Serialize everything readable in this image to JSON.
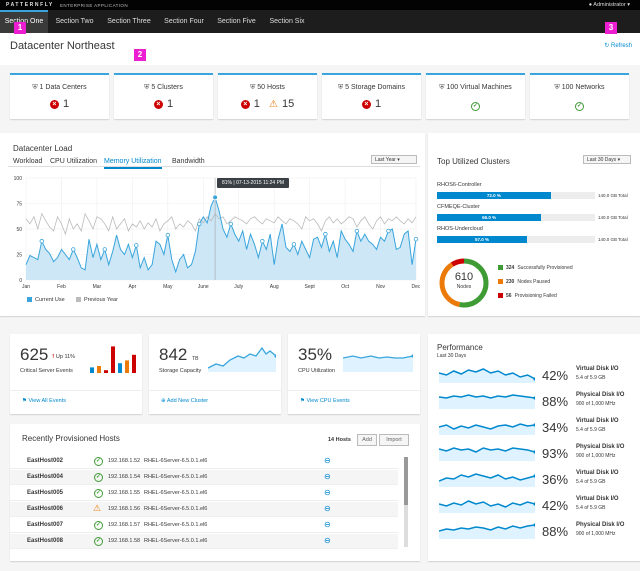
{
  "app": {
    "brand": "PATTERNFLY",
    "brand_sub": "ENTERPRISE APPLICATION",
    "user": "Administrator"
  },
  "nav": [
    "Section One",
    "Section Two",
    "Section Three",
    "Section Four",
    "Section Five",
    "Section Six"
  ],
  "badges": [
    "1",
    "2",
    "3"
  ],
  "page": {
    "title": "Datacenter Northeast",
    "refresh": "Refresh"
  },
  "aggregate": [
    {
      "label": "1 Data Centers",
      "status": [
        {
          "icon": "error-circle-icon",
          "count": "1"
        }
      ]
    },
    {
      "label": "5 Clusters",
      "status": [
        {
          "icon": "error-circle-icon",
          "count": "1"
        }
      ]
    },
    {
      "label": "50 Hosts",
      "status": [
        {
          "icon": "error-circle-icon",
          "count": "1"
        },
        {
          "icon": "warning-triangle-icon",
          "count": "15"
        }
      ]
    },
    {
      "label": "5 Storage Domains",
      "status": [
        {
          "icon": "error-circle-icon",
          "count": "1"
        }
      ]
    },
    {
      "label": "100 Virtual Machines",
      "status": [
        {
          "icon": "ok-circle-icon",
          "count": ""
        }
      ]
    },
    {
      "label": "100 Networks",
      "status": [
        {
          "icon": "ok-circle-icon",
          "count": ""
        }
      ]
    }
  ],
  "load": {
    "title": "Datacenter Load",
    "tabs": [
      "Workload",
      "CPU Utilization",
      "Memory Utilization",
      "Bandwidth"
    ],
    "active_tab": 2,
    "select": "Last Year",
    "tooltip": "81% | 07-13-2015 11:24 PM",
    "legend": [
      "Current Use",
      "Previous Year"
    ]
  },
  "chart_data": {
    "type": "area",
    "xlabels": [
      "Jan",
      "Feb",
      "Mar",
      "Apr",
      "May",
      "June",
      "July",
      "Aug",
      "Sept",
      "Oct",
      "Nov",
      "Dec"
    ],
    "ylim": [
      0,
      100
    ],
    "yticks": [
      0,
      25,
      50,
      75,
      100
    ],
    "colors": {
      "current": "#39a5dc",
      "previous": "#bbbbbb",
      "fill": "#cde7f6"
    },
    "series": [
      {
        "name": "Current Use",
        "values": [
          15,
          24,
          22,
          20,
          38,
          30,
          26,
          18,
          22,
          30,
          25,
          20,
          30,
          22,
          12,
          10,
          40,
          22,
          35,
          20,
          30,
          15,
          28,
          44,
          30,
          25,
          35,
          22,
          34,
          12,
          22,
          10,
          15,
          38,
          35,
          25,
          44,
          20,
          8,
          20,
          25,
          12,
          15,
          28,
          55,
          62,
          56,
          73,
          81,
          68,
          50,
          42,
          55,
          45,
          38,
          48,
          30,
          45,
          35,
          22,
          38,
          30,
          45,
          15,
          40,
          55,
          32,
          28,
          35,
          25,
          38,
          30,
          22,
          40,
          42,
          32,
          45,
          28,
          38,
          22,
          48,
          40,
          35,
          28,
          48,
          38,
          45,
          38,
          35,
          30,
          42,
          38,
          48,
          50,
          30,
          32,
          45,
          48,
          15,
          40
        ]
      },
      {
        "name": "Previous Year",
        "values": [
          60,
          55,
          62,
          50,
          65,
          58,
          52,
          48,
          62,
          55,
          45,
          60,
          50,
          55,
          48,
          65,
          58,
          50,
          62,
          60,
          55,
          48,
          62,
          50,
          55,
          60,
          48,
          55,
          52,
          58,
          50,
          56,
          52,
          60,
          48,
          55,
          58,
          62,
          50,
          55,
          52,
          58,
          55,
          48,
          60,
          56,
          62,
          58,
          65,
          60,
          62,
          55,
          58,
          62,
          60,
          58,
          55,
          60,
          62,
          58,
          55,
          60,
          58,
          56,
          62,
          58,
          55,
          60,
          58,
          55,
          50,
          62,
          58,
          60,
          55,
          48,
          58,
          62,
          56,
          60,
          55,
          58,
          62,
          60,
          52,
          58,
          62,
          55,
          50,
          58,
          62,
          55,
          60,
          58,
          62,
          58,
          55,
          60,
          56,
          62
        ]
      }
    ]
  },
  "clusters": {
    "title": "Top Utilized Clusters",
    "select": "Last 30 Days",
    "items": [
      {
        "name": "RHOS6-Controller",
        "pct": 72.0,
        "label": "72.0 %",
        "total": "140.0 GB Total"
      },
      {
        "name": "CFMEQE-Cluster",
        "pct": 66.0,
        "label": "66.0 %",
        "total": "140.0 GB Total"
      },
      {
        "name": "RHOS-Undercloud",
        "pct": 57.0,
        "label": "57.0 %",
        "total": "140.0 GB Total"
      }
    ],
    "donut": {
      "value": "610",
      "label": "Nodes",
      "segments": [
        {
          "value": 324,
          "color": "#3f9c35"
        },
        {
          "value": 230,
          "color": "#ec7a08"
        },
        {
          "value": 56,
          "color": "#cc0000"
        }
      ]
    },
    "legend": [
      {
        "count": "324",
        "label": "Successfully Provisioned",
        "color": "#3f9c35"
      },
      {
        "count": "230",
        "label": "Nodes Paused",
        "color": "#ec7a08"
      },
      {
        "count": "56",
        "label": "Provisioning Failed",
        "color": "#cc0000"
      }
    ]
  },
  "trends": [
    {
      "value": "625",
      "change": "Up 11%",
      "label": "Critical Server Events",
      "link": "View All Events"
    },
    {
      "value": "842",
      "unit": "TB",
      "label": "Storage Capacity",
      "link": "Add New Cluster"
    },
    {
      "value": "35%",
      "label": "CPU Utilization",
      "link": "View CPU Events"
    }
  ],
  "event_bars": [
    {
      "v": 20,
      "c": "#0088ce"
    },
    {
      "v": 25,
      "c": "#ec7a08"
    },
    {
      "v": 10,
      "c": "#cc0000"
    },
    {
      "v": 95,
      "c": "#cc0000"
    },
    {
      "v": 35,
      "c": "#0088ce"
    },
    {
      "v": 45,
      "c": "#ec7a08"
    },
    {
      "v": 65,
      "c": "#cc0000"
    }
  ],
  "hosts": {
    "title": "Recently Provisioned Hosts",
    "count": "14 Hosts",
    "add": "Add",
    "import": "Import",
    "rows": [
      {
        "name": "EastHost002",
        "status": "ok",
        "ip": "192.168.1.52",
        "os": "RHEL-6Server-6.5.0.1.el6"
      },
      {
        "name": "EastHost004",
        "status": "ok",
        "ip": "192.168.1.54",
        "os": "RHEL-6Server-6.5.0.1.el6"
      },
      {
        "name": "EastHost005",
        "status": "ok",
        "ip": "192.168.1.55",
        "os": "RHEL-6Server-6.5.0.1.el6"
      },
      {
        "name": "EastHost006",
        "status": "warn",
        "ip": "192.168.1.56",
        "os": "RHEL-6Server-6.5.0.1.el6"
      },
      {
        "name": "EastHost007",
        "status": "ok",
        "ip": "192.168.1.57",
        "os": "RHEL-6Server-6.5.0.1.el6"
      },
      {
        "name": "EastHost008",
        "status": "ok",
        "ip": "192.168.1.58",
        "os": "RHEL-6Server-6.5.0.1.el6"
      }
    ]
  },
  "performance": {
    "title": "Performance",
    "subtitle": "Last 30 Days",
    "items": [
      {
        "pct": "42%",
        "label": "Virtual Disk I/O",
        "sub": "5.4 of 5.9 GB"
      },
      {
        "pct": "88%",
        "label": "Physical Disk I/O",
        "sub": "900 of 1,000 MHz"
      },
      {
        "pct": "34%",
        "label": "Virtual Disk I/O",
        "sub": "5.4 of 5.9 GB"
      },
      {
        "pct": "93%",
        "label": "Physical Disk I/O",
        "sub": "900 of 1,000 MHz"
      },
      {
        "pct": "36%",
        "label": "Virtual Disk I/O",
        "sub": "5.4 of 5.9 GB"
      },
      {
        "pct": "42%",
        "label": "Virtual Disk I/O",
        "sub": "5.4 of 5.9 GB"
      },
      {
        "pct": "88%",
        "label": "Physical Disk I/O",
        "sub": "900 of 1,000 MHz"
      }
    ]
  }
}
